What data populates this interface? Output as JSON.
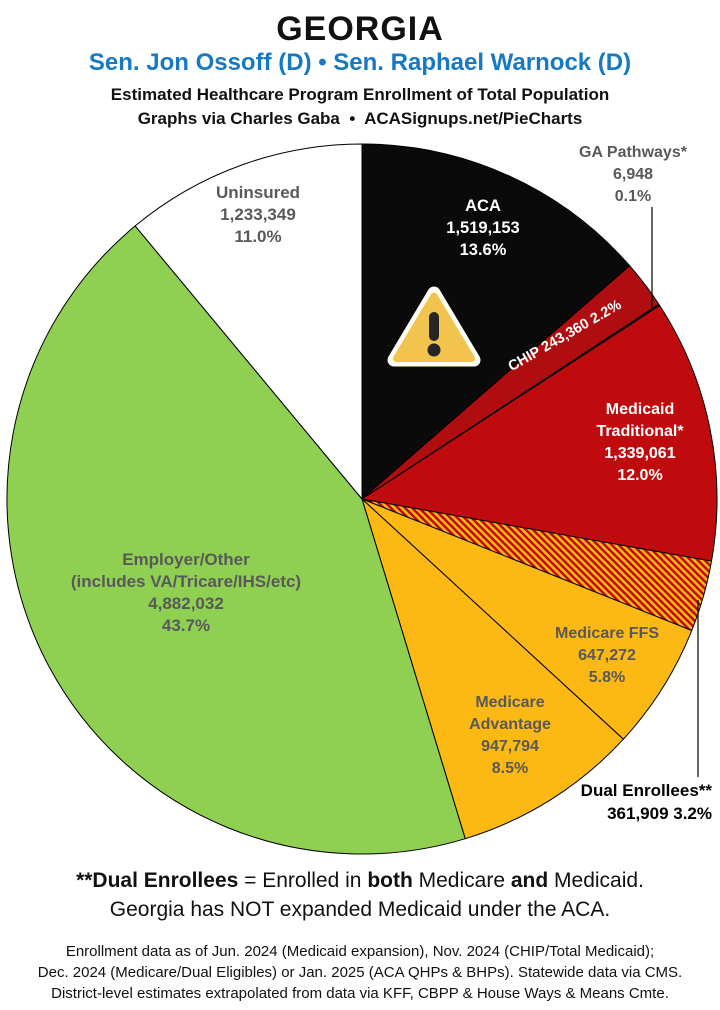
{
  "header": {
    "state": "GEORGIA",
    "senators": "Sen. Jon Ossoff (D) • Sen. Raphael Warnock (D)",
    "subtitle": "Estimated Healthcare Program Enrollment of Total Population",
    "credit": "Graphs via Charles Gaba  •  ACASignups.net/PieCharts"
  },
  "colors": {
    "senators_blue": "#1779c4",
    "aca_black": "#0a0a0a",
    "chip_red": "#b00d10",
    "medicaid_red": "#c00b0e",
    "medicare_gold": "#fcb813",
    "employer_green": "#8fd053",
    "uninsured_white": "#ffffff",
    "inside_label_gray": "#595959",
    "warning_gold": "#f2c44e"
  },
  "chart_data": {
    "type": "pie",
    "title": "Estimated Healthcare Program Enrollment of Total Population — Georgia",
    "direction": "clockwise",
    "start_angle_deg": 0,
    "legend_position": "none (labels on/next to slices)",
    "slices": [
      {
        "id": "aca",
        "label": "ACA",
        "value": 1519153,
        "value_text": "1,519,153",
        "percent": 13.6,
        "percent_text": "13.6%",
        "color": "#0a0a0a"
      },
      {
        "id": "chip",
        "label": "CHIP",
        "value": 243360,
        "value_text": "243,360",
        "percent": 2.2,
        "percent_text": "2.2%",
        "color": "#b00d10",
        "inline_label": "CHIP 243,360 2.2%"
      },
      {
        "id": "ga-pathways",
        "label": "GA Pathways*",
        "value": 6948,
        "value_text": "6,948",
        "percent": 0.1,
        "percent_text": "0.1%",
        "color": "#141414"
      },
      {
        "id": "medicaid-traditional",
        "label": "Medicaid Traditional*",
        "label_lines": [
          "Medicaid",
          "Traditional*"
        ],
        "value": 1339061,
        "value_text": "1,339,061",
        "percent": 12.0,
        "percent_text": "12.0%",
        "color": "#c00b0e"
      },
      {
        "id": "dual-enrollees",
        "label": "Dual Enrollees**",
        "value": 361909,
        "value_text": "361,909",
        "percent": 3.2,
        "percent_text": "3.2%",
        "value_pct_text": "361,909 3.2%",
        "color": "#fcb813",
        "pattern": "red-yellow-diagonal-hatch"
      },
      {
        "id": "medicare-ffs",
        "label": "Medicare FFS",
        "value": 647272,
        "value_text": "647,272",
        "percent": 5.8,
        "percent_text": "5.8%",
        "color": "#fcb813"
      },
      {
        "id": "medicare-advantage",
        "label": "Medicare Advantage",
        "label_lines": [
          "Medicare",
          "Advantage"
        ],
        "value": 947794,
        "value_text": "947,794",
        "percent": 8.5,
        "percent_text": "8.5%",
        "color": "#fcb813"
      },
      {
        "id": "employer-other",
        "label": "Employer/Other (includes VA/Tricare/IHS/etc)",
        "label_lines": [
          "Employer/Other",
          "(includes VA/Tricare/IHS/etc)"
        ],
        "value": 4882032,
        "value_text": "4,882,032",
        "percent": 43.7,
        "percent_text": "43.7%",
        "color": "#8fd053"
      },
      {
        "id": "uninsured",
        "label": "Uninsured",
        "value": 1233349,
        "value_text": "1,233,349",
        "percent": 11.0,
        "percent_text": "11.0%",
        "color": "#ffffff"
      }
    ]
  },
  "icons": {
    "warning": "warning-triangle-exclamation"
  },
  "footnote": {
    "p1": "**Dual Enrollees",
    "p2": " = Enrolled in ",
    "p3": "both",
    "p4": " Medicare ",
    "p5": "and",
    "p6": " Medicaid.",
    "line2": "Georgia has NOT expanded Medicaid under the ACA."
  },
  "fineprint": {
    "line1": "Enrollment data as of Jun. 2024 (Medicaid expansion), Nov. 2024 (CHIP/Total Medicaid);",
    "line2": "Dec. 2024 (Medicare/Dual Eligibles) or Jan. 2025 (ACA QHPs & BHPs). Statewide data via CMS.",
    "line3": "District-level estimates extrapolated from data via KFF, CBPP & House Ways & Means Cmte."
  }
}
